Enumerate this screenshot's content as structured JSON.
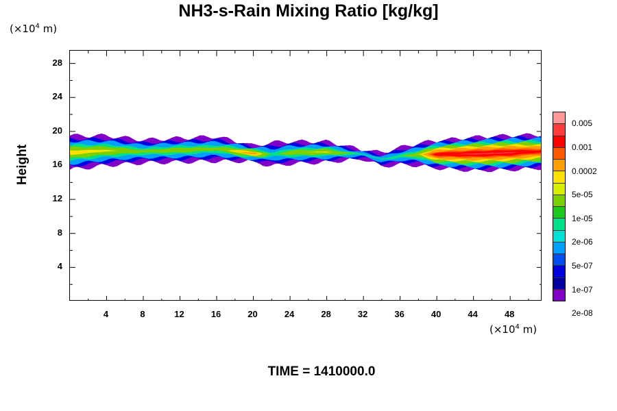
{
  "chart_data": {
    "type": "heatmap",
    "title": "NH3-s-Rain Mixing Ratio [kg/kg]",
    "ylabel": "Height",
    "xlabel": "",
    "x_unit": "(×10⁴ m)",
    "y_unit": "(×10⁴ m)",
    "xlim": [
      0,
      51.5
    ],
    "ylim": [
      0,
      29.5
    ],
    "x_ticks": [
      4,
      8,
      12,
      16,
      20,
      24,
      28,
      32,
      36,
      40,
      44,
      48
    ],
    "y_ticks": [
      4,
      8,
      12,
      16,
      20,
      24,
      28
    ],
    "colorbar_labels": [
      "0.005",
      "0.001",
      "0.0002",
      "5e-05",
      "1e-05",
      "2e-06",
      "5e-07",
      "1e-07",
      "2e-08"
    ],
    "colorbar_colors": [
      "#ff9999",
      "#ff3b3b",
      "#ff0000",
      "#ff5a00",
      "#ffa000",
      "#ffe000",
      "#d6f000",
      "#7ad000",
      "#1ec81e",
      "#00e08a",
      "#00e0d6",
      "#00a0ff",
      "#0050f0",
      "#0000e0",
      "#0000a0",
      "#8000c8"
    ],
    "band_profile": {
      "x": [
        0,
        4,
        8,
        12,
        16,
        20,
        22,
        24,
        28,
        32,
        34,
        36,
        38,
        40,
        44,
        48,
        51.5
      ],
      "top": [
        19.7,
        19.7,
        19.2,
        19.4,
        19.6,
        18.5,
        18.9,
        19.0,
        19.0,
        18.0,
        17.7,
        18.3,
        18.8,
        19.1,
        19.5,
        19.7,
        19.8
      ],
      "bottom": [
        15.7,
        16.2,
        16.5,
        16.6,
        16.7,
        16.7,
        16.1,
        16.4,
        16.6,
        17.0,
        16.1,
        16.3,
        16.2,
        15.9,
        15.6,
        15.7,
        15.9
      ],
      "level": [
        0.6,
        0.55,
        0.45,
        0.5,
        0.45,
        0.7,
        0.35,
        0.5,
        0.55,
        0.35,
        0.35,
        0.4,
        0.5,
        0.9,
        0.95,
        0.95,
        0.85
      ]
    },
    "time_label": "TIME = 1410000.0"
  }
}
